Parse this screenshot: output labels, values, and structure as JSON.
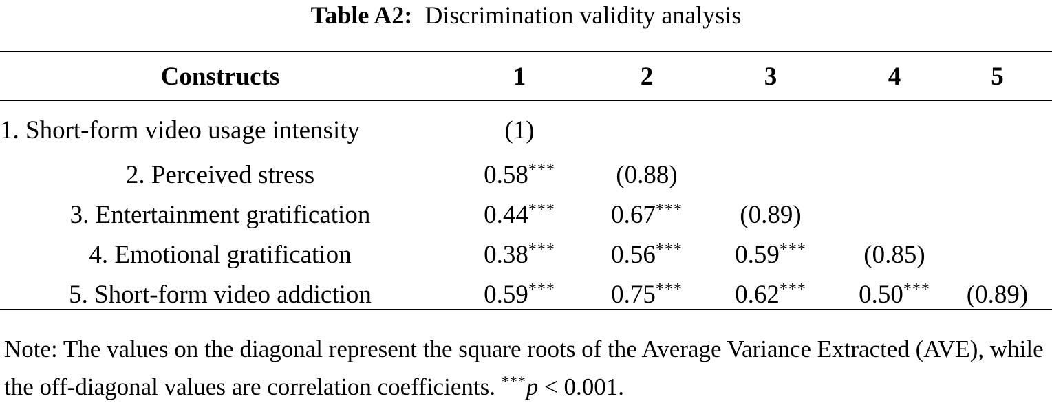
{
  "caption": {
    "label": "Table A2:",
    "title": "Discrimination validity analysis"
  },
  "table": {
    "headers": [
      "Constructs",
      "1",
      "2",
      "3",
      "4",
      "5"
    ],
    "rows": [
      {
        "construct": "1. Short-form video usage intensity",
        "cells": [
          {
            "value": "(1)",
            "sig": ""
          },
          {
            "value": "",
            "sig": ""
          },
          {
            "value": "",
            "sig": ""
          },
          {
            "value": "",
            "sig": ""
          },
          {
            "value": "",
            "sig": ""
          }
        ]
      },
      {
        "construct": "2. Perceived stress",
        "cells": [
          {
            "value": "0.58",
            "sig": "***"
          },
          {
            "value": "(0.88)",
            "sig": ""
          },
          {
            "value": "",
            "sig": ""
          },
          {
            "value": "",
            "sig": ""
          },
          {
            "value": "",
            "sig": ""
          }
        ]
      },
      {
        "construct": "3. Entertainment gratification",
        "cells": [
          {
            "value": "0.44",
            "sig": "***"
          },
          {
            "value": "0.67",
            "sig": "***"
          },
          {
            "value": "(0.89)",
            "sig": ""
          },
          {
            "value": "",
            "sig": ""
          },
          {
            "value": "",
            "sig": ""
          }
        ]
      },
      {
        "construct": "4. Emotional gratification",
        "cells": [
          {
            "value": "0.38",
            "sig": "***"
          },
          {
            "value": "0.56",
            "sig": "***"
          },
          {
            "value": "0.59",
            "sig": "***"
          },
          {
            "value": "(0.85)",
            "sig": ""
          },
          {
            "value": "",
            "sig": ""
          }
        ]
      },
      {
        "construct": "5. Short-form video addiction",
        "cells": [
          {
            "value": "0.59",
            "sig": "***"
          },
          {
            "value": "0.75",
            "sig": "***"
          },
          {
            "value": "0.62",
            "sig": "***"
          },
          {
            "value": "0.50",
            "sig": "***"
          },
          {
            "value": "(0.89)",
            "sig": ""
          }
        ]
      }
    ]
  },
  "note": {
    "text": "Note: The values on the diagonal represent the square roots of the Average Variance Extracted (AVE), while the off-diagonal values are correlation coefficients.",
    "sig_marker": "***",
    "p_symbol": "p",
    "p_condition": "< 0.001."
  }
}
